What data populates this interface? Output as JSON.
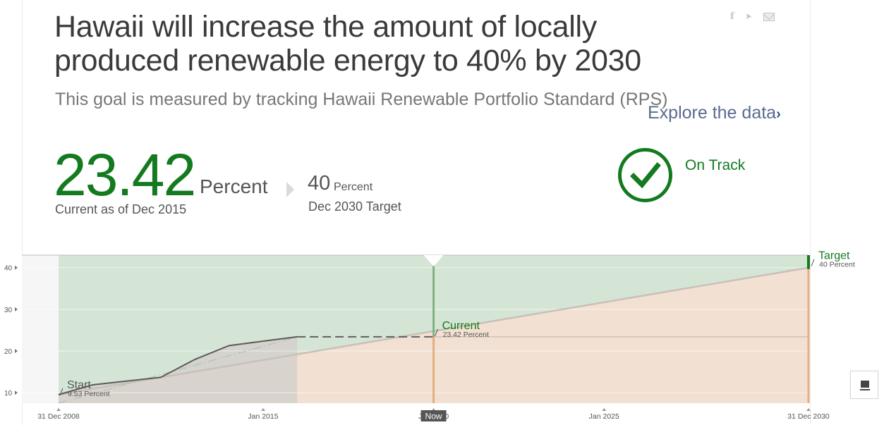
{
  "goal": {
    "title": "Hawaii will increase the amount of locally produced renewable energy to 40% by 2030",
    "subtitle": "This goal is measured by tracking Hawaii Renewable Portfolio Standard (RPS)"
  },
  "current": {
    "value": "23.42",
    "unit": "Percent",
    "as_of": "Current as of Dec 2015"
  },
  "target": {
    "value": "40",
    "unit": "Percent",
    "date": "Dec 2030 Target"
  },
  "explore": {
    "label": "Explore the data",
    "chevron": "›"
  },
  "status": {
    "label": "On Track",
    "color": "#137a1f",
    "icon": "checkmark-circle-icon"
  },
  "share": {
    "icons": [
      "facebook-icon",
      "twitter-icon",
      "email-icon"
    ],
    "facebook_glyph": "f",
    "twitter_glyph": "🐦"
  },
  "colors": {
    "green": "#137a1f",
    "track_zone": "#d5e5d5",
    "below_zone": "#f2e0d2",
    "history_zone": "#d3d0cc",
    "now_line": "#7fb283",
    "orange_line": "#e5ad80",
    "actual_line": "#5a5a5a"
  },
  "chart_data": {
    "type": "line",
    "y_ticks": [
      "10",
      "20",
      "30",
      "40"
    ],
    "ylim": [
      7.5,
      43
    ],
    "xlim": [
      "2008-12-31",
      "2030-12-31"
    ],
    "x_ticks": [
      "31 Dec 2008",
      "Jan 2015",
      "Jan 2020",
      "Jan 2025",
      "31 Dec 2030"
    ],
    "now_label": "Now",
    "series": [
      {
        "name": "actual",
        "points": [
          {
            "x": "2008-12-31",
            "y": 9.53
          },
          {
            "x": "2010-01-01",
            "y": 11.9
          },
          {
            "x": "2012-01-01",
            "y": 13.7
          },
          {
            "x": "2013-01-01",
            "y": 18.0
          },
          {
            "x": "2014-01-01",
            "y": 21.3
          },
          {
            "x": "2015-12-31",
            "y": 23.42
          }
        ]
      },
      {
        "name": "target_path",
        "points": [
          {
            "x": "2008-12-31",
            "y": 9.53
          },
          {
            "x": "2030-12-31",
            "y": 40
          }
        ]
      },
      {
        "name": "projection",
        "points": [
          {
            "x": "2015-12-31",
            "y": 23.42
          },
          {
            "x": "2020-01-01",
            "y": 23.42
          }
        ]
      }
    ],
    "annotations": [
      {
        "label": "Start",
        "value": "9.53 Percent",
        "x": "2008-12-31",
        "y": 9.53
      },
      {
        "label": "Current",
        "value": "23.42 Percent",
        "x": "2020-01-01",
        "y": 23.42
      },
      {
        "label": "Target",
        "value": "40 Percent",
        "x": "2030-12-31",
        "y": 40
      }
    ]
  }
}
